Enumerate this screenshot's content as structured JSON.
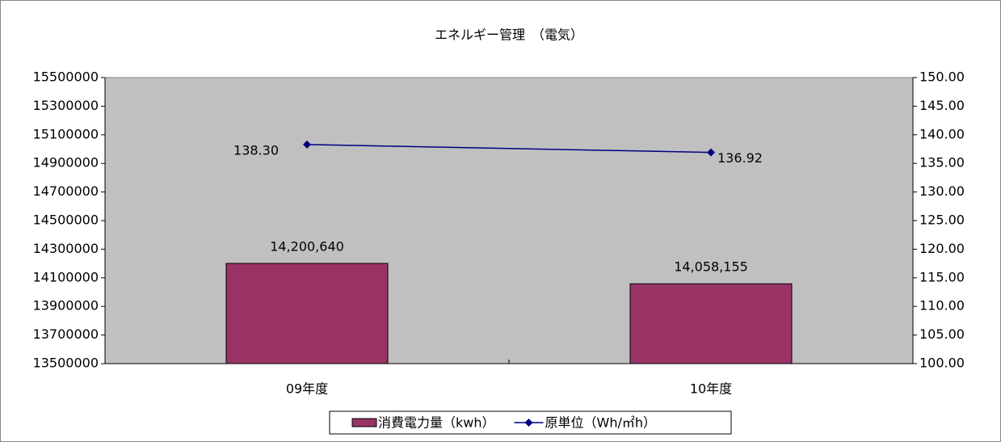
{
  "chart_data": {
    "type": "combo",
    "title": "エネルギー管理　（電気）",
    "categories": [
      "09年度",
      "10年度"
    ],
    "series": [
      {
        "name": "消費電力量（kwh）",
        "type": "bar",
        "color": "#993366",
        "values": [
          14200640,
          14058155
        ],
        "value_labels": [
          "14,200,640",
          "14,058,155"
        ]
      },
      {
        "name": "原単位（Wh/㎡h）",
        "type": "line",
        "axis": "y2",
        "color": "#000080",
        "values": [
          138.3,
          136.92
        ],
        "value_labels": [
          "138.30",
          "136.92"
        ]
      }
    ],
    "ylim": [
      13500000,
      15500000
    ],
    "yticks": [
      13500000,
      13700000,
      13900000,
      14100000,
      14300000,
      14500000,
      14700000,
      14900000,
      15100000,
      15300000,
      15500000
    ],
    "y2lim": [
      100,
      150
    ],
    "y2ticks": [
      {
        "value": 100,
        "label": "100.00"
      },
      {
        "value": 105,
        "label": "105.00"
      },
      {
        "value": 110,
        "label": "110.00"
      },
      {
        "value": 115,
        "label": "115.00"
      },
      {
        "value": 120,
        "label": "120.00"
      },
      {
        "value": 125,
        "label": "125.00"
      },
      {
        "value": 130,
        "label": "130.00"
      },
      {
        "value": 135,
        "label": "135.00"
      },
      {
        "value": 140,
        "label": "140.00"
      },
      {
        "value": 145,
        "label": "145.00"
      },
      {
        "value": 150,
        "label": "150.00"
      }
    ],
    "grid": false,
    "legend": "bottom"
  }
}
